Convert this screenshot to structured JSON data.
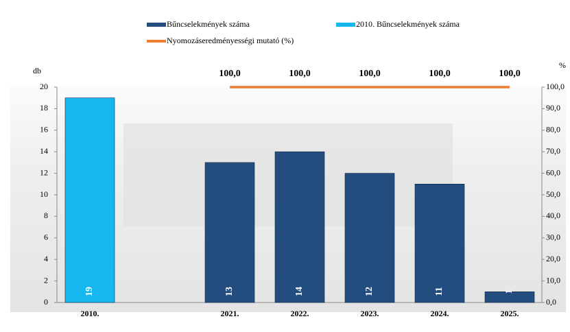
{
  "chart_data": {
    "type": "bar",
    "categories": [
      "2010.",
      null,
      "2021.",
      "2022.",
      "2023.",
      "2024.",
      "2025."
    ],
    "series": [
      {
        "name": "Bűncselekmények száma",
        "type": "bar",
        "color": "#234d7e",
        "values": [
          null,
          null,
          13,
          14,
          12,
          11,
          1
        ]
      },
      {
        "name": "2010. Bűncselekmények száma",
        "type": "bar",
        "color": "#16b6ee",
        "values": [
          19,
          null,
          null,
          null,
          null,
          null,
          null
        ]
      },
      {
        "name": "Nyomozáseredményességi mutató (%)",
        "type": "line",
        "axis": "y2",
        "color": "#ed7d31",
        "values": [
          null,
          null,
          100,
          100,
          100,
          100,
          100
        ],
        "value_labels": [
          null,
          null,
          "100,0",
          "100,0",
          "100,0",
          "100,0",
          "100,0"
        ]
      }
    ],
    "y_label": "db",
    "y2_label": "%",
    "ylim": [
      0,
      20
    ],
    "yticks": [
      0,
      2,
      4,
      6,
      8,
      10,
      12,
      14,
      16,
      18,
      20
    ],
    "y2lim": [
      0,
      100
    ],
    "y2ticks": [
      {
        "value": 0,
        "label": "0,0"
      },
      {
        "value": 10,
        "label": "10,0"
      },
      {
        "value": 20,
        "label": "20,0"
      },
      {
        "value": 30,
        "label": "30,0"
      },
      {
        "value": 40,
        "label": "40,0"
      },
      {
        "value": 50,
        "label": "50,0"
      },
      {
        "value": 60,
        "label": "60,0"
      },
      {
        "value": 70,
        "label": "70,0"
      },
      {
        "value": 80,
        "label": "80,0"
      },
      {
        "value": 90,
        "label": "90,0"
      },
      {
        "value": 100,
        "label": "100,0"
      }
    ]
  }
}
